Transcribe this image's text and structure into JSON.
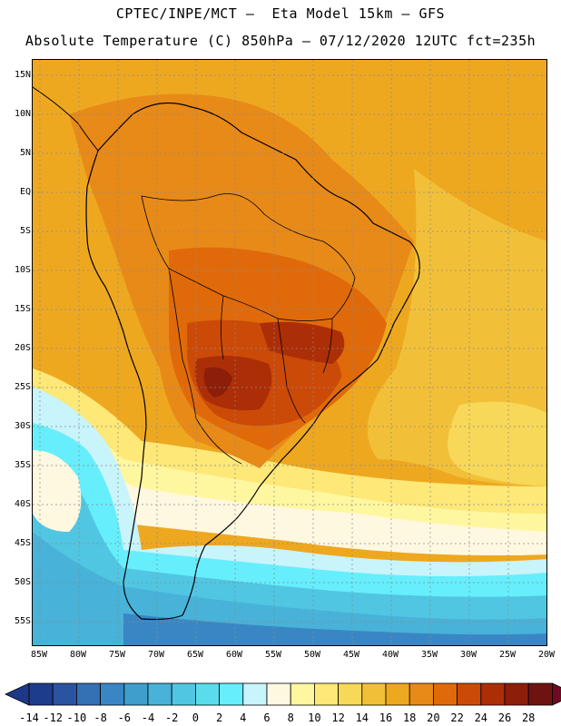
{
  "title_line1": "CPTEC/INPE/MCT –  Eta Model 15km – GFS",
  "title_line2": "Absolute Temperature (C) 850hPa – 07/12/2020 12UTC fct=235h",
  "lat_labels": [
    "15N",
    "10N",
    "5N",
    "EQ",
    "5S",
    "10S",
    "15S",
    "20S",
    "25S",
    "30S",
    "35S",
    "40S",
    "45S",
    "50S",
    "55S"
  ],
  "lon_labels": [
    "85W",
    "80W",
    "75W",
    "70W",
    "65W",
    "60W",
    "55W",
    "50W",
    "45W",
    "40W",
    "35W",
    "30W",
    "25W",
    "20W"
  ],
  "colorbar": {
    "labels": [
      "-14",
      "-12",
      "-10",
      "-8",
      "-6",
      "-4",
      "-2",
      "0",
      "2",
      "4",
      "6",
      "8",
      "10",
      "12",
      "14",
      "16",
      "18",
      "20",
      "22",
      "24",
      "26",
      "28"
    ],
    "colors": [
      "#1e3c8c",
      "#2b54a0",
      "#3470b4",
      "#3a86c4",
      "#3f9ecc",
      "#48b2d8",
      "#50c6e2",
      "#5adcec",
      "#66eefc",
      "#c8f4fc",
      "#fff8e0",
      "#fff7a0",
      "#fde878",
      "#f8d858",
      "#f2c038",
      "#eea820",
      "#e88a18",
      "#e06a0a",
      "#cc4a08",
      "#ac2e06",
      "#8c1e0a",
      "#6e1410"
    ],
    "low_arrow_color": "#1e3888",
    "high_arrow_color": "#6e0a22"
  }
}
